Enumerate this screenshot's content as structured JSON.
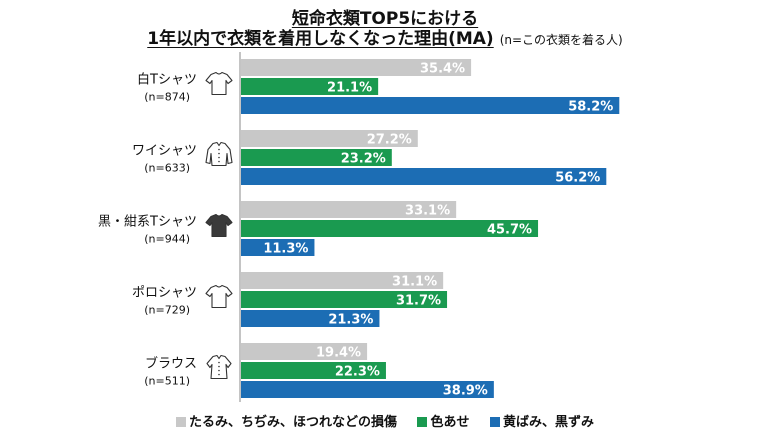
{
  "header": {
    "title_line1": "短命衣類TOP5における",
    "title_line2": "1年以内で衣類を着用しなくなった理由(MA)",
    "note": "(n=この衣類を着る人)"
  },
  "colors": {
    "damage": "#c8c8c8",
    "fade": "#1a9a50",
    "yellow": "#1c6db4",
    "axis": "#888888"
  },
  "chart_data": {
    "type": "bar",
    "orientation": "horizontal",
    "xlim": [
      0,
      70
    ],
    "categories": [
      {
        "name": "白Tシャツ",
        "n": "(n=874)",
        "icon": "white-tshirt-icon"
      },
      {
        "name": "ワイシャツ",
        "n": "(n=633)",
        "icon": "dress-shirt-icon"
      },
      {
        "name": "黒・紺系Tシャツ",
        "n": "(n=944)",
        "icon": "black-tshirt-icon"
      },
      {
        "name": "ポロシャツ",
        "n": "(n=729)",
        "icon": "polo-shirt-icon"
      },
      {
        "name": "ブラウス",
        "n": "(n=511)",
        "icon": "blouse-icon"
      }
    ],
    "series": [
      {
        "name": "たるみ、ちぢみ、ほつれなどの損傷",
        "color": "#c8c8c8",
        "values": [
          35.4,
          27.2,
          33.1,
          31.1,
          19.4
        ],
        "labels": [
          "35.4%",
          "27.2%",
          "33.1%",
          "31.1%",
          "19.4%"
        ]
      },
      {
        "name": "色あせ",
        "color": "#1a9a50",
        "values": [
          21.1,
          23.2,
          45.7,
          31.7,
          22.3
        ],
        "labels": [
          "21.1%",
          "23.2%",
          "45.7%",
          "31.7%",
          "22.3%"
        ]
      },
      {
        "name": "黄ばみ、黒ずみ",
        "color": "#1c6db4",
        "values": [
          58.2,
          56.2,
          11.3,
          21.3,
          38.9
        ],
        "labels": [
          "58.2%",
          "56.2%",
          "11.3%",
          "21.3%",
          "38.9%"
        ]
      }
    ],
    "legend_position": "bottom",
    "grid": false
  }
}
